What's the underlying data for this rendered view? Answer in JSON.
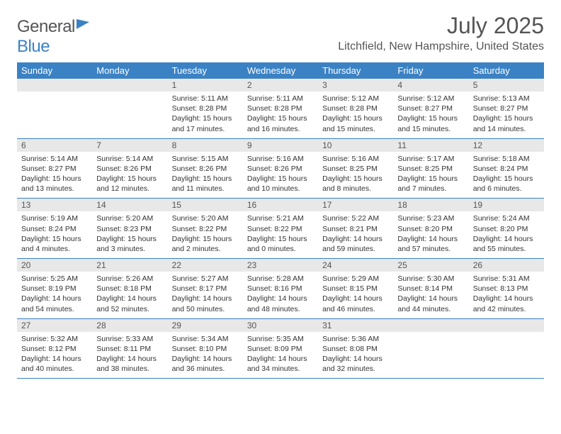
{
  "brand": {
    "word1": "General",
    "word2": "Blue"
  },
  "title": {
    "month": "July 2025",
    "location": "Litchfield, New Hampshire, United States"
  },
  "columns": [
    "Sunday",
    "Monday",
    "Tuesday",
    "Wednesday",
    "Thursday",
    "Friday",
    "Saturday"
  ],
  "colors": {
    "accent": "#3b82c4",
    "header_text": "#ffffff",
    "daynum_bg": "#e8e8e8",
    "text": "#555555",
    "body_text": "#333333"
  },
  "typography": {
    "month_fontsize": 32,
    "location_fontsize": 16,
    "th_fontsize": 13,
    "daynum_fontsize": 12,
    "detail_fontsize": 10.5
  },
  "weeks": [
    [
      {
        "n": "",
        "sunrise": "",
        "sunset": "",
        "daylight": ""
      },
      {
        "n": "",
        "sunrise": "",
        "sunset": "",
        "daylight": ""
      },
      {
        "n": "1",
        "sunrise": "Sunrise: 5:11 AM",
        "sunset": "Sunset: 8:28 PM",
        "daylight": "Daylight: 15 hours and 17 minutes."
      },
      {
        "n": "2",
        "sunrise": "Sunrise: 5:11 AM",
        "sunset": "Sunset: 8:28 PM",
        "daylight": "Daylight: 15 hours and 16 minutes."
      },
      {
        "n": "3",
        "sunrise": "Sunrise: 5:12 AM",
        "sunset": "Sunset: 8:28 PM",
        "daylight": "Daylight: 15 hours and 15 minutes."
      },
      {
        "n": "4",
        "sunrise": "Sunrise: 5:12 AM",
        "sunset": "Sunset: 8:27 PM",
        "daylight": "Daylight: 15 hours and 15 minutes."
      },
      {
        "n": "5",
        "sunrise": "Sunrise: 5:13 AM",
        "sunset": "Sunset: 8:27 PM",
        "daylight": "Daylight: 15 hours and 14 minutes."
      }
    ],
    [
      {
        "n": "6",
        "sunrise": "Sunrise: 5:14 AM",
        "sunset": "Sunset: 8:27 PM",
        "daylight": "Daylight: 15 hours and 13 minutes."
      },
      {
        "n": "7",
        "sunrise": "Sunrise: 5:14 AM",
        "sunset": "Sunset: 8:26 PM",
        "daylight": "Daylight: 15 hours and 12 minutes."
      },
      {
        "n": "8",
        "sunrise": "Sunrise: 5:15 AM",
        "sunset": "Sunset: 8:26 PM",
        "daylight": "Daylight: 15 hours and 11 minutes."
      },
      {
        "n": "9",
        "sunrise": "Sunrise: 5:16 AM",
        "sunset": "Sunset: 8:26 PM",
        "daylight": "Daylight: 15 hours and 10 minutes."
      },
      {
        "n": "10",
        "sunrise": "Sunrise: 5:16 AM",
        "sunset": "Sunset: 8:25 PM",
        "daylight": "Daylight: 15 hours and 8 minutes."
      },
      {
        "n": "11",
        "sunrise": "Sunrise: 5:17 AM",
        "sunset": "Sunset: 8:25 PM",
        "daylight": "Daylight: 15 hours and 7 minutes."
      },
      {
        "n": "12",
        "sunrise": "Sunrise: 5:18 AM",
        "sunset": "Sunset: 8:24 PM",
        "daylight": "Daylight: 15 hours and 6 minutes."
      }
    ],
    [
      {
        "n": "13",
        "sunrise": "Sunrise: 5:19 AM",
        "sunset": "Sunset: 8:24 PM",
        "daylight": "Daylight: 15 hours and 4 minutes."
      },
      {
        "n": "14",
        "sunrise": "Sunrise: 5:20 AM",
        "sunset": "Sunset: 8:23 PM",
        "daylight": "Daylight: 15 hours and 3 minutes."
      },
      {
        "n": "15",
        "sunrise": "Sunrise: 5:20 AM",
        "sunset": "Sunset: 8:22 PM",
        "daylight": "Daylight: 15 hours and 2 minutes."
      },
      {
        "n": "16",
        "sunrise": "Sunrise: 5:21 AM",
        "sunset": "Sunset: 8:22 PM",
        "daylight": "Daylight: 15 hours and 0 minutes."
      },
      {
        "n": "17",
        "sunrise": "Sunrise: 5:22 AM",
        "sunset": "Sunset: 8:21 PM",
        "daylight": "Daylight: 14 hours and 59 minutes."
      },
      {
        "n": "18",
        "sunrise": "Sunrise: 5:23 AM",
        "sunset": "Sunset: 8:20 PM",
        "daylight": "Daylight: 14 hours and 57 minutes."
      },
      {
        "n": "19",
        "sunrise": "Sunrise: 5:24 AM",
        "sunset": "Sunset: 8:20 PM",
        "daylight": "Daylight: 14 hours and 55 minutes."
      }
    ],
    [
      {
        "n": "20",
        "sunrise": "Sunrise: 5:25 AM",
        "sunset": "Sunset: 8:19 PM",
        "daylight": "Daylight: 14 hours and 54 minutes."
      },
      {
        "n": "21",
        "sunrise": "Sunrise: 5:26 AM",
        "sunset": "Sunset: 8:18 PM",
        "daylight": "Daylight: 14 hours and 52 minutes."
      },
      {
        "n": "22",
        "sunrise": "Sunrise: 5:27 AM",
        "sunset": "Sunset: 8:17 PM",
        "daylight": "Daylight: 14 hours and 50 minutes."
      },
      {
        "n": "23",
        "sunrise": "Sunrise: 5:28 AM",
        "sunset": "Sunset: 8:16 PM",
        "daylight": "Daylight: 14 hours and 48 minutes."
      },
      {
        "n": "24",
        "sunrise": "Sunrise: 5:29 AM",
        "sunset": "Sunset: 8:15 PM",
        "daylight": "Daylight: 14 hours and 46 minutes."
      },
      {
        "n": "25",
        "sunrise": "Sunrise: 5:30 AM",
        "sunset": "Sunset: 8:14 PM",
        "daylight": "Daylight: 14 hours and 44 minutes."
      },
      {
        "n": "26",
        "sunrise": "Sunrise: 5:31 AM",
        "sunset": "Sunset: 8:13 PM",
        "daylight": "Daylight: 14 hours and 42 minutes."
      }
    ],
    [
      {
        "n": "27",
        "sunrise": "Sunrise: 5:32 AM",
        "sunset": "Sunset: 8:12 PM",
        "daylight": "Daylight: 14 hours and 40 minutes."
      },
      {
        "n": "28",
        "sunrise": "Sunrise: 5:33 AM",
        "sunset": "Sunset: 8:11 PM",
        "daylight": "Daylight: 14 hours and 38 minutes."
      },
      {
        "n": "29",
        "sunrise": "Sunrise: 5:34 AM",
        "sunset": "Sunset: 8:10 PM",
        "daylight": "Daylight: 14 hours and 36 minutes."
      },
      {
        "n": "30",
        "sunrise": "Sunrise: 5:35 AM",
        "sunset": "Sunset: 8:09 PM",
        "daylight": "Daylight: 14 hours and 34 minutes."
      },
      {
        "n": "31",
        "sunrise": "Sunrise: 5:36 AM",
        "sunset": "Sunset: 8:08 PM",
        "daylight": "Daylight: 14 hours and 32 minutes."
      },
      {
        "n": "",
        "sunrise": "",
        "sunset": "",
        "daylight": ""
      },
      {
        "n": "",
        "sunrise": "",
        "sunset": "",
        "daylight": ""
      }
    ]
  ]
}
